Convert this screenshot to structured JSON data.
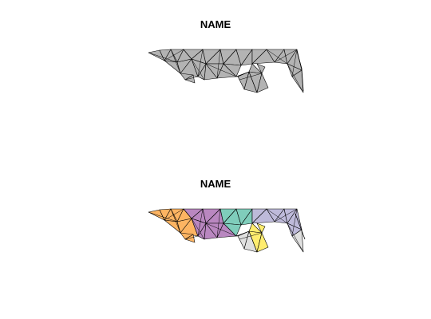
{
  "panels": [
    {
      "title": "NAME"
    },
    {
      "title": "NAME"
    }
  ],
  "colors": {
    "uniform_fill": "#b3b3b3",
    "stroke": "#000000",
    "palette": [
      "#fdb462",
      "#b987c0",
      "#7fcdbb",
      "#bebada",
      "#ffed6f",
      "#e0e0e0"
    ]
  }
}
